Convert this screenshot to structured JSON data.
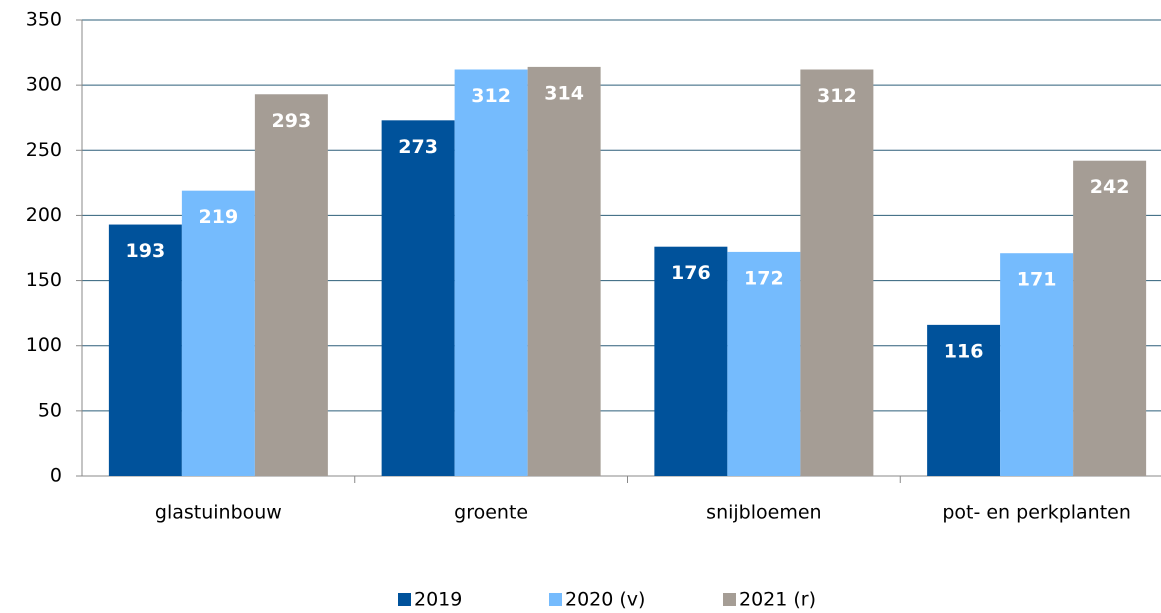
{
  "chart_data": {
    "type": "bar",
    "categories": [
      "glastuinbouw",
      "groente",
      "snijbloemen",
      "pot- en perkplanten"
    ],
    "series": [
      {
        "name": "2019",
        "color": "#00529b",
        "values": [
          193,
          273,
          176,
          116
        ]
      },
      {
        "name": "2020 (v)",
        "color": "#75bbfd",
        "values": [
          219,
          312,
          172,
          171
        ]
      },
      {
        "name": "2021 (r)",
        "color": "#a59d95",
        "values": [
          293,
          314,
          312,
          242
        ]
      }
    ],
    "ylim": [
      0,
      350
    ],
    "yticks": [
      0,
      50,
      100,
      150,
      200,
      250,
      300,
      350
    ],
    "grid": true,
    "legend": "bottom"
  }
}
